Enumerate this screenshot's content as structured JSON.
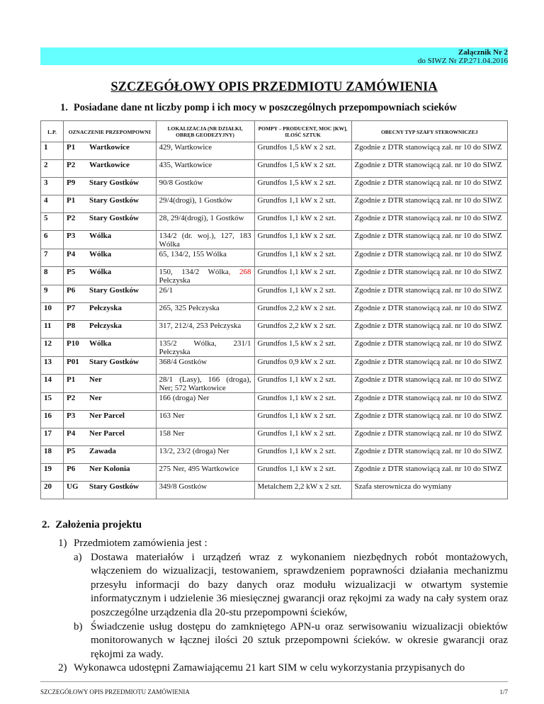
{
  "header": {
    "attachment": "Załącznik Nr 2",
    "reference": "do SIWZ Nr ZP.271.04.2016",
    "band_color": "#66ffff"
  },
  "title": "SZCZEGÓŁOWY OPIS PRZEDMIOTU ZAMÓWIENIA",
  "section1": {
    "number": "1.",
    "heading": "Posiadane dane nt liczby pomp i ich mocy w poszczególnych przepompowniach scieków"
  },
  "table": {
    "headers": [
      "L.P.",
      "OZNACZENIE PRZEPOMPOWNI",
      "LOKALIZACJA (NR DZIAŁKI, OBRĘB GEODEZYJNY)",
      "POMPY – PRODUCENT, MOC [KW], ILOŚĆ SZTUK",
      "OBECNY TYP SZAFY STEROWNICZEJ"
    ],
    "rows": [
      {
        "lp": "1",
        "code": "P1",
        "name": "Wartkowice",
        "loc": "429, Wartkowice",
        "pumps": "Grundfos 1,5 kW x 2 szt.",
        "cabinet": "Zgodnie z DTR stanowiącą zał. nr 10 do SIWZ"
      },
      {
        "lp": "2",
        "code": "P2",
        "name": "Wartkowice",
        "loc": "435, Wartkowice",
        "pumps": "Grundfos 1,5 kW x 2 szt.",
        "cabinet": "Zgodnie z DTR stanowiącą zał. nr 10 do SIWZ"
      },
      {
        "lp": "3",
        "code": "P9",
        "name": "Stary Gostków",
        "loc": "90/8 Gostków",
        "pumps": "Grundfos 1,5 kW x 2 szt.",
        "cabinet": "Zgodnie z DTR stanowiącą zał. nr 10 do SIWZ"
      },
      {
        "lp": "4",
        "code": "P1",
        "name": "Stary Gostków",
        "loc": "29/4(drogi), 1 Gostków",
        "pumps": "Grundfos 1,1 kW x 2 szt.",
        "cabinet": "Zgodnie z DTR stanowiącą zał. nr 10 do SIWZ"
      },
      {
        "lp": "5",
        "code": "P2",
        "name": "Stary Gostków",
        "loc": "28, 29/4(drogi), 1 Gostków",
        "pumps": "Grundfos 1,1 kW x 2 szt.",
        "cabinet": "Zgodnie z DTR stanowiącą zał. nr 10 do SIWZ"
      },
      {
        "lp": "6",
        "code": "P3",
        "name": "Wólka",
        "loc": "134/2 (dr. woj.), 127, 183 Wólka",
        "pumps": "Grundfos 1,1 kW x 2 szt.",
        "cabinet": "Zgodnie z DTR stanowiącą zał. nr 10 do SIWZ"
      },
      {
        "lp": "7",
        "code": "P4",
        "name": "Wólka",
        "loc": "65, 134/2, 155 Wólka",
        "pumps": "Grundfos 1,1 kW x 2 szt.",
        "cabinet": "Zgodnie z DTR stanowiącą zał. nr 10 do SIWZ"
      },
      {
        "lp": "8",
        "code": "P5",
        "name": "Wólka",
        "loc": "150, 134/2 Wólka",
        "loc_red": ", 268",
        "loc_after": " Pełczyska",
        "pumps": "Grundfos 1,1 kW x 2 szt.",
        "cabinet": "Zgodnie z DTR stanowiącą zał. nr 10 do SIWZ"
      },
      {
        "lp": "9",
        "code": "P6",
        "name": "Stary Gostków",
        "loc": "26/1",
        "pumps": "Grundfos 1,1 kW x 2 szt.",
        "cabinet": "Zgodnie z DTR stanowiącą zał. nr 10 do SIWZ"
      },
      {
        "lp": "10",
        "code": "P7",
        "name": "Pełczyska",
        "loc": "265, 325 Pełczyska",
        "pumps": "Grundfos 2,2 kW x 2 szt.",
        "cabinet": "Zgodnie z DTR stanowiącą zał. nr 10 do SIWZ"
      },
      {
        "lp": "11",
        "code": "P8",
        "name": "Pełczyska",
        "loc": "317, 212/4, 253 Pełczyska",
        "pumps": "Grundfos 2,2 kW x 2 szt.",
        "cabinet": "Zgodnie z DTR stanowiącą zał. nr 10 do SIWZ"
      },
      {
        "lp": "12",
        "code": "P10",
        "name": "Wólka",
        "loc": "135/2 Wólka, 231/1 Pełczyska",
        "pumps": "Grundfos 1,5 kW x 2 szt.",
        "cabinet": "Zgodnie z DTR stanowiącą zał. nr 10 do SIWZ"
      },
      {
        "lp": "13",
        "code": "P01",
        "name": "Stary Gostków",
        "loc": "368/4 Gostków",
        "pumps": "Grundfos 0,9 kW x 2 szt.",
        "cabinet": "Zgodnie z DTR stanowiącą zał. nr 10 do SIWZ"
      },
      {
        "lp": "14",
        "code": "P1",
        "name": "Ner",
        "loc": "28/1 (Lasy), 166 (droga), Ner; 572 Wartkowice",
        "pumps": "Grundfos 1,1 kW x 2 szt.",
        "cabinet": "Zgodnie z DTR stanowiącą zał. nr 10 do SIWZ"
      },
      {
        "lp": "15",
        "code": "P2",
        "name": "Ner",
        "loc": "166 (droga) Ner",
        "pumps": "Grundfos 1,1 kW x 2 szt.",
        "cabinet": "Zgodnie z DTR stanowiącą zał. nr 10 do SIWZ"
      },
      {
        "lp": "16",
        "code": "P3",
        "name": "Ner Parcel",
        "loc": "163 Ner",
        "pumps": "Grundfos 1,1 kW x 2 szt.",
        "cabinet": "Zgodnie z DTR stanowiącą zał. nr 10 do SIWZ"
      },
      {
        "lp": "17",
        "code": "P4",
        "name": "Ner Parcel",
        "loc": "158 Ner",
        "pumps": "Grundfos 1,1 kW x 2 szt.",
        "cabinet": "Zgodnie z DTR stanowiącą zał. nr 10 do SIWZ"
      },
      {
        "lp": "18",
        "code": "P5",
        "name": "Zawada",
        "loc": "13/2, 23/2 (droga) Ner",
        "pumps": "Grundfos 1,1 kW x 2 szt.",
        "cabinet": "Zgodnie z DTR stanowiącą zał. nr 10 do SIWZ"
      },
      {
        "lp": "19",
        "code": "P6",
        "name": "Ner Kolonia",
        "loc": "275 Ner, 495 Wartkowice",
        "pumps": "Grundfos 1,1 kW x 2 szt.",
        "cabinet": "Zgodnie z DTR stanowiącą zał. nr 10 do SIWZ"
      },
      {
        "lp": "20",
        "code": "UG",
        "name": "Stary Gostków",
        "loc": "349/8 Gostków",
        "pumps": "Metalchem 2,2 kW x 2 szt.",
        "cabinet": "Szafa sterownicza do wymiany"
      }
    ]
  },
  "section2": {
    "number": "2.",
    "heading": "Założenia projektu",
    "items": [
      {
        "marker": "1)",
        "text": "Przedmiotem zamówienia jest :"
      },
      {
        "marker": "a)",
        "text": "Dostawa materiałów i urządzeń wraz z wykonaniem niezbędnych robót montażowych, włączeniem do wizualizacji, testowaniem, sprawdzeniem poprawności działania mechanizmu przesyłu informacji do bazy danych oraz modułu wizualizacji w otwartym systemie informatycznym i udzielenie 36 miesięcznej gwarancji oraz rękojmi za wady na cały system oraz poszczególne urządzenia dla 20-stu przepompowni ścieków,"
      },
      {
        "marker": "b)",
        "text": "Świadczenie usług dostępu do zamkniętego APN-u oraz serwisowaniu wizualizacji obiektów monitorowanych w łącznej ilości 20 sztuk przepompowni ścieków. w okresie gwarancji oraz rękojmi za wady."
      },
      {
        "marker": "2)",
        "text": "Wykonawca udostępni Zamawiającemu 21 kart SIM w celu wykorzystania przypisanych do"
      }
    ]
  },
  "footer": {
    "title": "SZCZEGÓŁOWY OPIS PRZEDMIOTU ZAMÓWIENIA",
    "page": "1/7"
  }
}
